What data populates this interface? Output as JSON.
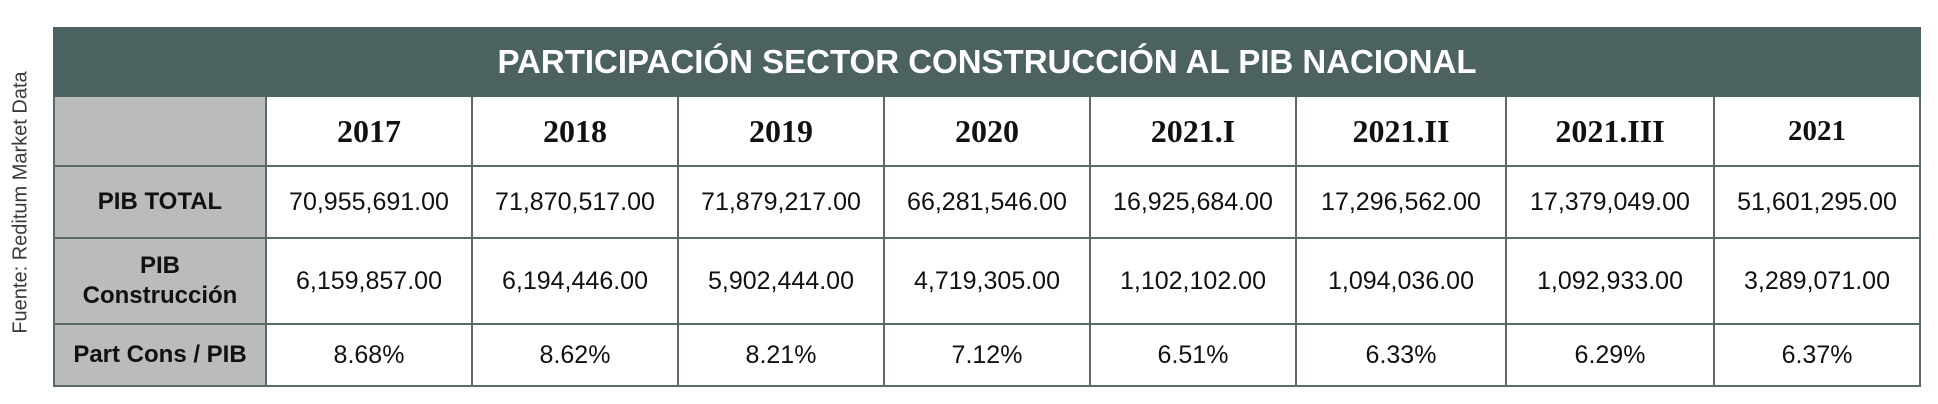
{
  "source": "Fuente: Reditum Market Data",
  "title": "PARTICIPACIÓN SECTOR CONSTRUCCIÓN AL PIB NACIONAL",
  "columns": [
    "2017",
    "2018",
    "2019",
    "2020",
    "2021.I",
    "2021.II",
    "2021.III",
    "2021"
  ],
  "rows": [
    {
      "label": "PIB TOTAL",
      "values": [
        "70,955,691.00",
        "71,870,517.00",
        "71,879,217.00",
        "66,281,546.00",
        "16,925,684.00",
        "17,296,562.00",
        "17,379,049.00",
        "51,601,295.00"
      ]
    },
    {
      "label_line1": "PIB",
      "label_line2": "Construcción",
      "values": [
        "6,159,857.00",
        "6,194,446.00",
        "5,902,444.00",
        "4,719,305.00",
        "1,102,102.00",
        "1,094,036.00",
        "1,092,933.00",
        "3,289,071.00"
      ]
    },
    {
      "label": "Part Cons / PIB",
      "values": [
        "8.68%",
        "8.62%",
        "8.21%",
        "7.12%",
        "6.51%",
        "6.33%",
        "6.29%",
        "6.37%"
      ]
    }
  ],
  "colors": {
    "header_bg": "#4b6261",
    "label_bg": "#b9bcbb",
    "border": "#5a6a69"
  }
}
